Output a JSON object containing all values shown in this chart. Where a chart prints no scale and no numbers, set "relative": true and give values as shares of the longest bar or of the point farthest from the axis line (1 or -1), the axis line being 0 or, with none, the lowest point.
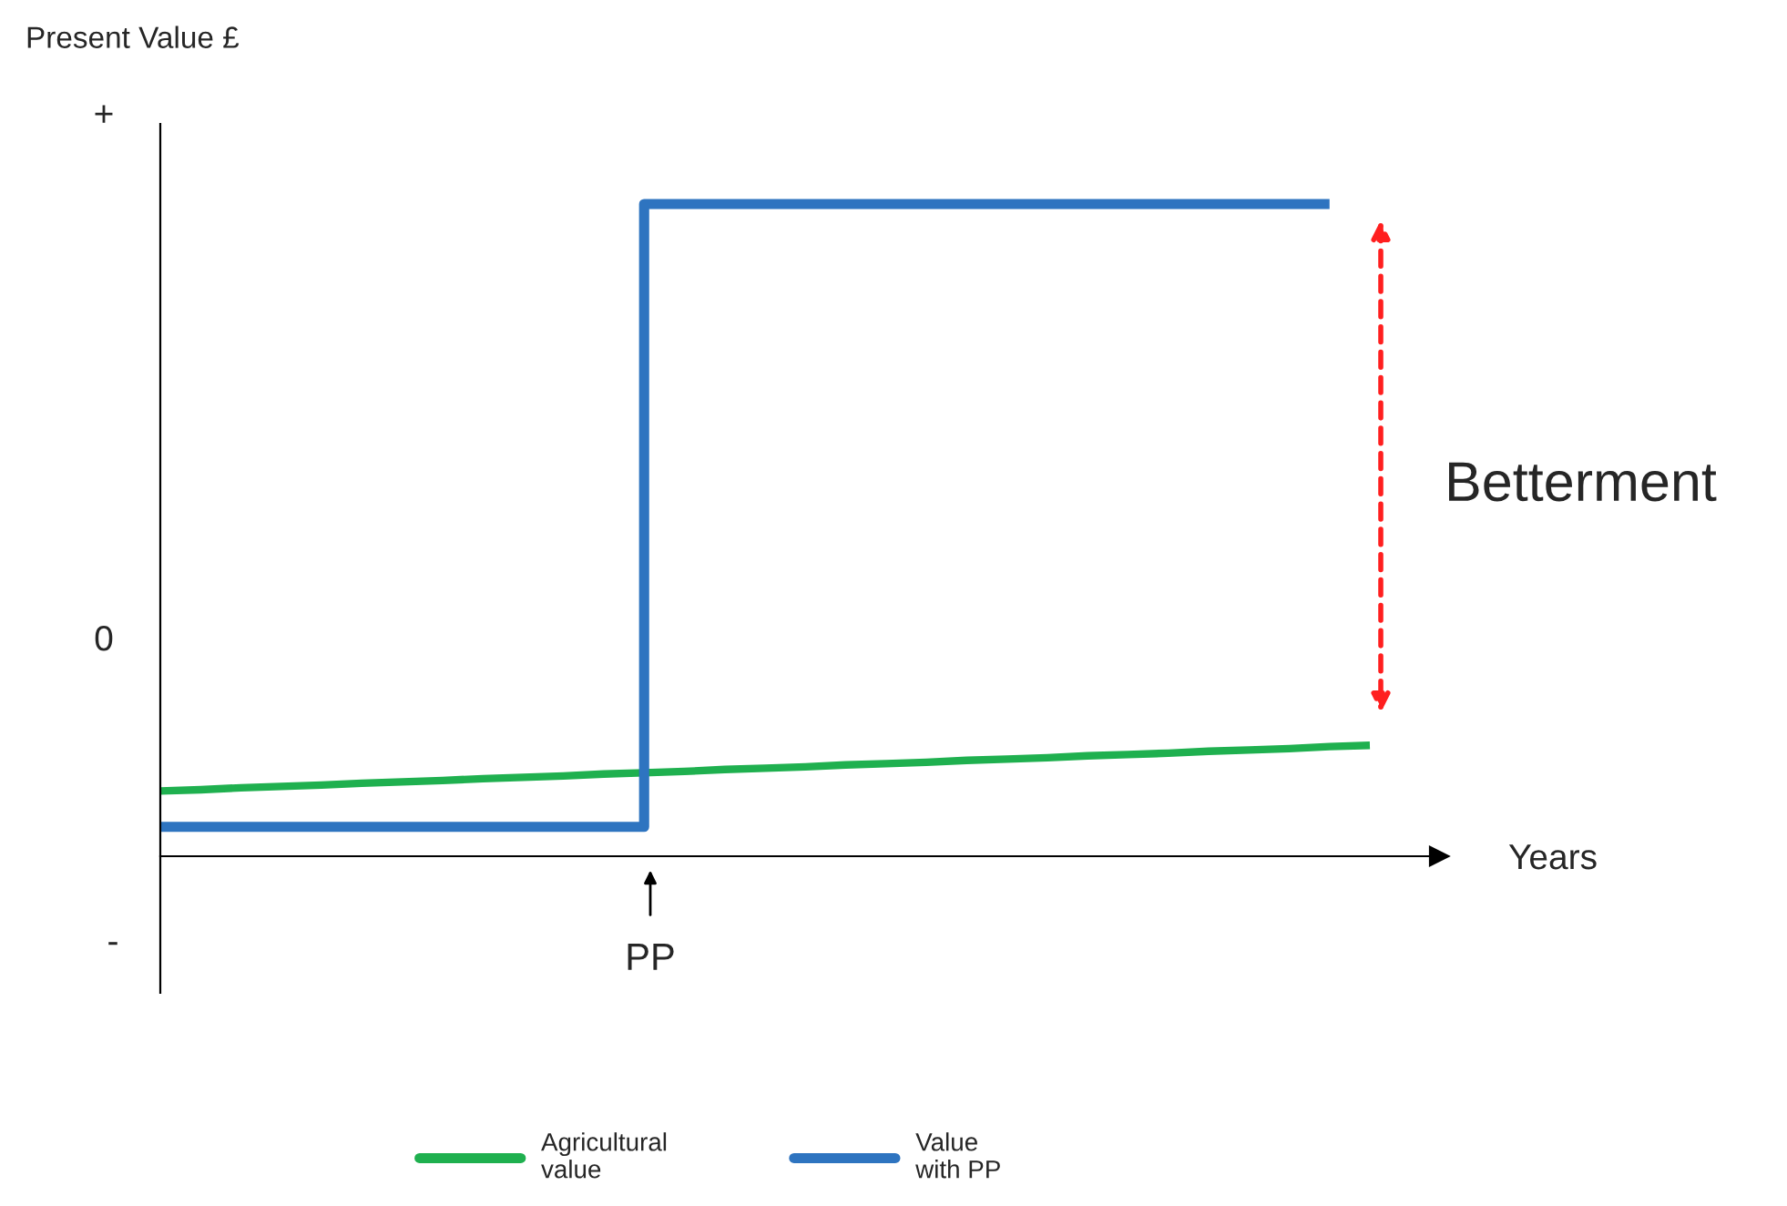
{
  "chart_data": {
    "type": "line",
    "relative": true,
    "xlabel": "Years",
    "categories": [
      null,
      null,
      null,
      null,
      null,
      null,
      null,
      null,
      null,
      null,
      null,
      null,
      null,
      null,
      null,
      null,
      null,
      null,
      null,
      null,
      null,
      null,
      null,
      null,
      null,
      null,
      null,
      null,
      null,
      null,
      null
    ],
    "series": [
      {
        "name": "Agricultural\nvalue",
        "color": "#1fb04f",
        "values": [
          0.1,
          0.102,
          0.105,
          0.107,
          0.109,
          0.112,
          0.114,
          0.116,
          0.119,
          0.121,
          0.123,
          0.126,
          0.128,
          0.13,
          0.133,
          0.135,
          0.137,
          0.14,
          0.142,
          0.144,
          0.147,
          0.149,
          0.151,
          0.154,
          0.156,
          0.158,
          0.161,
          0.163,
          0.165,
          0.168,
          0.17
        ]
      },
      {
        "name": "Value\nwith PP",
        "type": "step",
        "color": "#2e74c0",
        "values": [
          0.045,
          0.045,
          0.045,
          0.045,
          0.045,
          0.045,
          0.045,
          0.045,
          0.045,
          0.045,
          0.045,
          0.045,
          0.045,
          1,
          1,
          1,
          1,
          1,
          1,
          1,
          1,
          1,
          1,
          1,
          1,
          1,
          1,
          1,
          1,
          1,
          null
        ]
      }
    ],
    "annotations": [
      "+",
      "0",
      "-",
      "PP",
      "Betterment",
      "Present Value £"
    ],
    "legend": "bottom",
    "grid": false
  }
}
